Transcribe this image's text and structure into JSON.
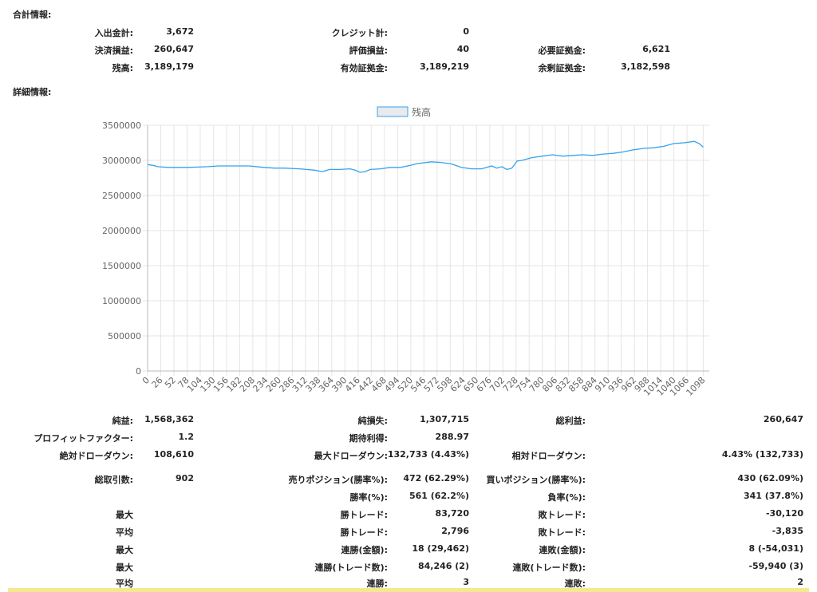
{
  "summary": {
    "title": "合計情報:",
    "deposit_label": "入出金計:",
    "deposit_value": "3,672",
    "credit_label": "クレジット計:",
    "credit_value": "0",
    "closed_pl_label": "決済損益:",
    "closed_pl_value": "260,647",
    "floating_pl_label": "評価損益:",
    "floating_pl_value": "40",
    "margin_label": "必要証拠金:",
    "margin_value": "6,621",
    "balance_label": "残高:",
    "balance_value": "3,189,179",
    "equity_label": "有効証拠金:",
    "equity_value": "3,189,219",
    "free_margin_label": "余剰証拠金:",
    "free_margin_value": "3,182,598"
  },
  "detail": {
    "title": "詳細情報:"
  },
  "chart_data": {
    "type": "line",
    "legend": "残高",
    "legend_position": "top-center",
    "grid": true,
    "line_color": "#36a2eb",
    "xlim": [
      0,
      1110
    ],
    "ylim": [
      0,
      3500000
    ],
    "y_ticks": [
      "3500000",
      "3000000",
      "2500000",
      "2000000",
      "1500000",
      "1000000",
      "500000",
      "0"
    ],
    "x_ticks": [
      "0",
      "26",
      "52",
      "78",
      "104",
      "130",
      "156",
      "182",
      "208",
      "234",
      "260",
      "286",
      "312",
      "338",
      "364",
      "390",
      "416",
      "442",
      "468",
      "494",
      "520",
      "546",
      "572",
      "598",
      "624",
      "650",
      "676",
      "702",
      "728",
      "754",
      "780",
      "806",
      "832",
      "858",
      "884",
      "910",
      "936",
      "962",
      "988",
      "1014",
      "1040",
      "1066",
      "1098"
    ],
    "series": [
      {
        "x": [
          0,
          10,
          20,
          40,
          80,
          120,
          140,
          160,
          200,
          230,
          250,
          270,
          300,
          330,
          345,
          350,
          360,
          380,
          400,
          410,
          420,
          430,
          440,
          460,
          480,
          500,
          520,
          530,
          540,
          560,
          580,
          600,
          620,
          640,
          660,
          680,
          690,
          700,
          710,
          720,
          730,
          740,
          760,
          780,
          800,
          820,
          840,
          860,
          880,
          900,
          920,
          940,
          960,
          980,
          1000,
          1020,
          1040,
          1060,
          1080,
          1090,
          1098
        ],
        "y": [
          2940000,
          2930000,
          2910000,
          2900000,
          2900000,
          2910000,
          2920000,
          2920000,
          2920000,
          2900000,
          2890000,
          2890000,
          2880000,
          2860000,
          2840000,
          2850000,
          2870000,
          2870000,
          2880000,
          2860000,
          2830000,
          2840000,
          2870000,
          2880000,
          2900000,
          2900000,
          2930000,
          2950000,
          2960000,
          2980000,
          2970000,
          2950000,
          2900000,
          2880000,
          2880000,
          2920000,
          2890000,
          2910000,
          2870000,
          2890000,
          2990000,
          3000000,
          3040000,
          3060000,
          3080000,
          3060000,
          3070000,
          3080000,
          3070000,
          3090000,
          3100000,
          3120000,
          3150000,
          3170000,
          3180000,
          3200000,
          3240000,
          3250000,
          3270000,
          3240000,
          3189179
        ]
      }
    ]
  },
  "stats": {
    "net_profit_label": "純益:",
    "net_profit_value": "1,568,362",
    "net_loss_label": "純損失:",
    "net_loss_value": "1,307,715",
    "total_profit_label": "総利益:",
    "total_profit_value": "260,647",
    "pf_label": "プロフィットファクター:",
    "pf_value": "1.2",
    "expected_label": "期待利得:",
    "expected_value": "288.97",
    "abs_dd_label": "絶対ドローダウン:",
    "abs_dd_value": "108,610",
    "max_dd_label": "最大ドローダウン:",
    "max_dd_value": "132,733 (4.43%)",
    "rel_dd_label": "相対ドローダウン:",
    "rel_dd_value": "4.43% (132,733)",
    "total_trades_label": "総取引数:",
    "total_trades_value": "902",
    "sell_label": "売りポジション(勝率%):",
    "sell_value": "472 (62.29%)",
    "buy_label": "買いポジション(勝率%):",
    "buy_value": "430 (62.09%)",
    "win_rate_label": "勝率(%):",
    "win_rate_value": "561 (62.2%)",
    "loss_rate_label": "負率(%):",
    "loss_rate_value": "341 (37.8%)",
    "max1_label": "最大",
    "max_win_label": "勝トレード:",
    "max_win_value": "83,720",
    "max_loss_label": "敗トレード:",
    "max_loss_value": "-30,120",
    "avg1_label": "平均",
    "avg_win_label": "勝トレード:",
    "avg_win_value": "2,796",
    "avg_loss_label": "敗トレード:",
    "avg_loss_value": "-3,835",
    "max2_label": "最大",
    "cons_win_amt_label": "連勝(金額):",
    "cons_win_amt_value": "18 (29,462)",
    "cons_loss_amt_label": "連敗(金額):",
    "cons_loss_amt_value": "8 (-54,031)",
    "max3_label": "最大",
    "cons_win_cnt_label": "連勝(トレード数):",
    "cons_win_cnt_value": "84,246 (2)",
    "cons_loss_cnt_label": "連敗(トレード数):",
    "cons_loss_cnt_value": "-59,940 (3)",
    "avg2_label": "平均",
    "avg_cons_win_label": "連勝:",
    "avg_cons_win_value": "3",
    "avg_cons_loss_label": "連敗:",
    "avg_cons_loss_value": "2"
  }
}
